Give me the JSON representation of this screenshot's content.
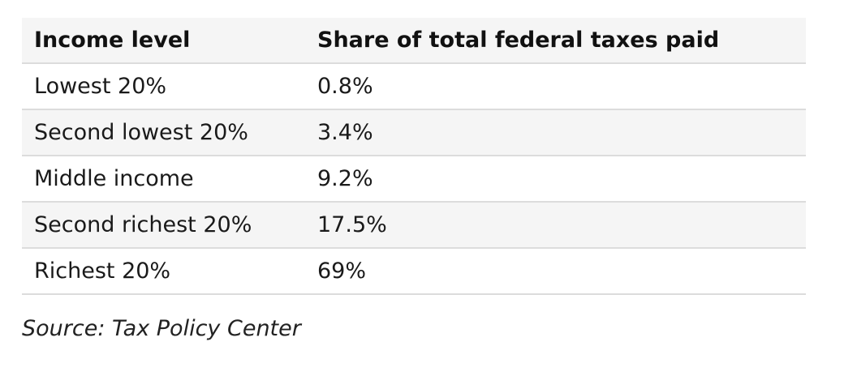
{
  "chart_data": {
    "type": "table",
    "columns": [
      "Income level",
      "Share of total federal taxes paid"
    ],
    "rows": [
      [
        "Lowest 20%",
        "0.8%"
      ],
      [
        "Second lowest 20%",
        "3.4%"
      ],
      [
        "Middle income",
        "9.2%"
      ],
      [
        "Second richest 20%",
        "17.5%"
      ],
      [
        "Richest 20%",
        "69%"
      ]
    ],
    "source": "Source: Tax Policy Center"
  }
}
